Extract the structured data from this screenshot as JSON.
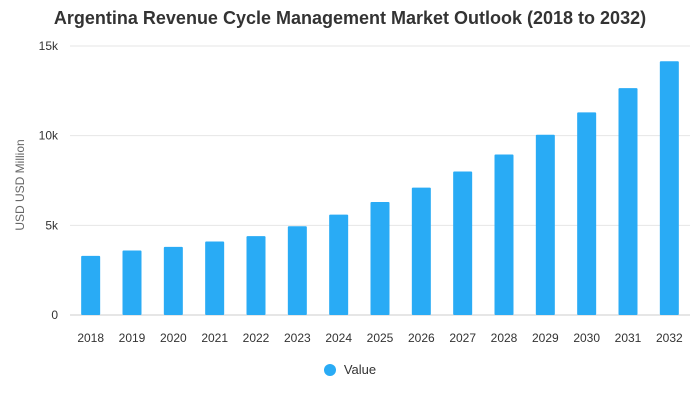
{
  "colors": {
    "bar": "#29abf5",
    "grid": "#e6e6e6",
    "axis": "#cccccc"
  },
  "chart_data": {
    "type": "bar",
    "title": "Argentina Revenue Cycle Management Market Outlook (2018 to 2032)",
    "xlabel": "",
    "ylabel": "USD USD Million",
    "ylim": [
      0,
      15000
    ],
    "yticks": [
      0,
      5000,
      10000,
      15000
    ],
    "ytick_labels": [
      "0",
      "5k",
      "10k",
      "15k"
    ],
    "categories": [
      "2018",
      "2019",
      "2020",
      "2021",
      "2022",
      "2023",
      "2024",
      "2025",
      "2026",
      "2027",
      "2028",
      "2029",
      "2030",
      "2031",
      "2032"
    ],
    "series": [
      {
        "name": "Value",
        "values": [
          3300,
          3600,
          3800,
          4100,
          4400,
          4950,
          5600,
          6300,
          7100,
          8000,
          8950,
          10050,
          11300,
          12650,
          14150
        ]
      }
    ],
    "legend": "bottom-center"
  }
}
